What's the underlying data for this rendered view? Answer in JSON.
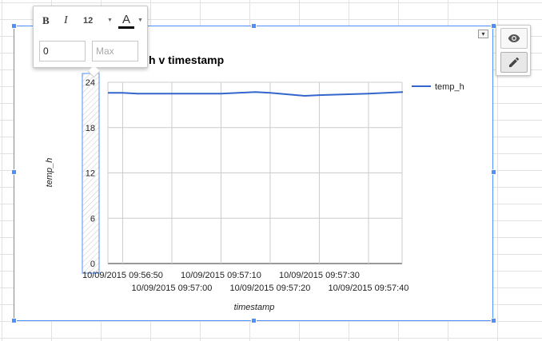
{
  "chart_data": {
    "type": "line",
    "title": "temp_h v timestamp",
    "title_visible_fragment": "h v timestamp",
    "xlabel": "timestamp",
    "ylabel": "temp_h",
    "ylim": [
      0,
      24
    ],
    "y_ticks": [
      "24",
      "18",
      "12",
      "6",
      "0"
    ],
    "x_tick_labels": [
      "10/09/2015 09:56:50",
      "10/09/2015 09:57:00",
      "10/09/2015 09:57:10",
      "10/09/2015 09:57:20",
      "10/09/2015 09:57:30",
      "10/09/2015 09:57:40"
    ],
    "grid": true,
    "legend_position": "right",
    "series": [
      {
        "name": "temp_h",
        "color": "#3366cc",
        "x": [
          "09:56:47",
          "09:56:50",
          "09:56:53",
          "09:57:00",
          "09:57:10",
          "09:57:17",
          "09:57:20",
          "09:57:27",
          "09:57:30",
          "09:57:40",
          "09:57:47"
        ],
        "values": [
          22.6,
          22.6,
          22.5,
          22.5,
          22.5,
          22.7,
          22.6,
          22.2,
          22.3,
          22.5,
          22.7
        ]
      }
    ]
  },
  "toolbar": {
    "bold_label": "B",
    "italic_label": "I",
    "font_size": "12",
    "text_color_label": "A",
    "text_color": "#000000",
    "min_value": "0",
    "max_placeholder": "Max"
  },
  "colors": {
    "selection": "#4d90fe",
    "series": "#3366cc"
  },
  "icons": [
    "eye-icon",
    "pencil-icon",
    "chevron-down-icon"
  ]
}
